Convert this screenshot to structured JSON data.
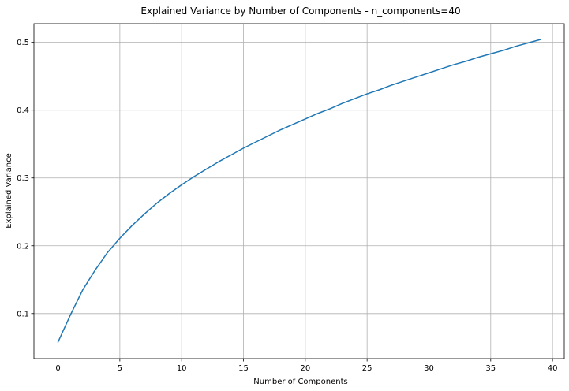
{
  "chart_data": {
    "type": "line",
    "title": "Explained Variance by Number of Components - n_components=40",
    "xlabel": "Number of Components",
    "ylabel": "Explained Variance",
    "xlim": [
      -1.95,
      40.95
    ],
    "ylim": [
      0.0335,
      0.5275
    ],
    "grid": true,
    "x_ticks": [
      0,
      5,
      10,
      15,
      20,
      25,
      30,
      35,
      40
    ],
    "y_ticks": [
      0.1,
      0.2,
      0.3,
      0.4,
      0.5
    ],
    "line_color": "#1f77b4",
    "series": [
      {
        "x": [
          0,
          1,
          2,
          3,
          4,
          5,
          6,
          7,
          8,
          9,
          10,
          11,
          12,
          13,
          14,
          15,
          16,
          17,
          18,
          19,
          20,
          21,
          22,
          23,
          24,
          25,
          26,
          27,
          28,
          29,
          30,
          31,
          32,
          33,
          34,
          35,
          36,
          37,
          38,
          39
        ],
        "values": [
          0.058,
          0.098,
          0.135,
          0.164,
          0.19,
          0.211,
          0.23,
          0.247,
          0.263,
          0.277,
          0.29,
          0.302,
          0.313,
          0.324,
          0.334,
          0.344,
          0.353,
          0.362,
          0.371,
          0.379,
          0.387,
          0.395,
          0.402,
          0.41,
          0.417,
          0.424,
          0.43,
          0.437,
          0.443,
          0.449,
          0.455,
          0.461,
          0.467,
          0.472,
          0.478,
          0.483,
          0.488,
          0.494,
          0.499,
          0.504
        ]
      }
    ]
  }
}
